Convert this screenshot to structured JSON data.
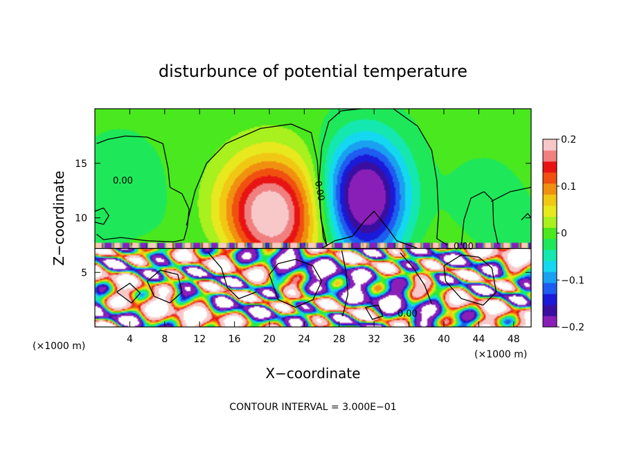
{
  "chart_data": {
    "type": "heatmap",
    "title": "disturbunce of potential temperature",
    "xlabel": "X−coordinate",
    "ylabel": "Z−coordinate",
    "x_unit": "(×1000 m)",
    "y_unit": "(×1000 m)",
    "xlim": [
      0,
      50
    ],
    "ylim": [
      0,
      20
    ],
    "xticks": [
      4,
      8,
      12,
      16,
      20,
      24,
      28,
      32,
      36,
      40,
      44,
      48
    ],
    "yticks": [
      5,
      10,
      15
    ],
    "colorbar": {
      "range": [
        -0.2,
        0.2
      ],
      "ticks": [
        0.2,
        0.1,
        0,
        -0.1,
        -0.2
      ],
      "tick_labels": [
        "0.2",
        "0.1",
        "0",
        "−0.1",
        "−0.2"
      ],
      "colors": [
        "#8a1fb8",
        "#3a0fa0",
        "#1a1ad8",
        "#1f5cf0",
        "#1aa0f0",
        "#14d8f0",
        "#14e8b0",
        "#1ee85a",
        "#4ae81e",
        "#a8f01e",
        "#e8e81e",
        "#f0c814",
        "#f09010",
        "#f05010",
        "#e81414",
        "#f08080",
        "#f8c8c8"
      ]
    },
    "contour_interval": "CONTOUR INTERVAL = 3.000E−01",
    "contour_labels": [
      "0.00",
      "0.00",
      "0.00",
      "0.00"
    ],
    "features": [
      {
        "name": "warm anomaly",
        "x": 20,
        "z": 10.5,
        "amplitude": 0.2
      },
      {
        "name": "cool anomaly",
        "x": 31,
        "z": 12,
        "amplitude": -0.2
      }
    ],
    "inversion_height": 7.2
  }
}
